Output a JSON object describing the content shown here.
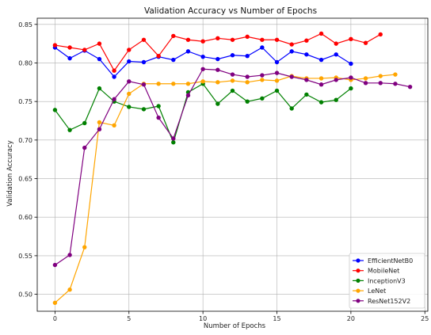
{
  "chart_data": {
    "type": "line",
    "title": "Validation Accuracy vs Number of Epochs",
    "xlabel": "Number of Epochs",
    "ylabel": "Validation Accuracy",
    "xlim": [
      -1.2,
      25.2
    ],
    "ylim": [
      0.478,
      0.858
    ],
    "xticks": [
      0,
      5,
      10,
      15,
      20,
      25
    ],
    "yticks": [
      0.5,
      0.55,
      0.6,
      0.65,
      0.7,
      0.75,
      0.8,
      0.85
    ],
    "grid": true,
    "legend_position": "bottom-right",
    "series": [
      {
        "name": "EfficientNetB0",
        "color": "#0000ff",
        "x": [
          0,
          1,
          2,
          3,
          4,
          5,
          6,
          7,
          8,
          9,
          10,
          11,
          12,
          13,
          14,
          15,
          16,
          17,
          18,
          19,
          20
        ],
        "values": [
          0.82,
          0.806,
          0.816,
          0.805,
          0.782,
          0.802,
          0.801,
          0.808,
          0.804,
          0.815,
          0.808,
          0.805,
          0.81,
          0.809,
          0.82,
          0.801,
          0.815,
          0.811,
          0.804,
          0.811,
          0.799
        ]
      },
      {
        "name": "MobileNet",
        "color": "#ff0000",
        "x": [
          0,
          1,
          2,
          3,
          4,
          5,
          6,
          7,
          8,
          9,
          10,
          11,
          12,
          13,
          14,
          15,
          16,
          17,
          18,
          19,
          20,
          21,
          22
        ],
        "values": [
          0.823,
          0.82,
          0.817,
          0.825,
          0.79,
          0.817,
          0.83,
          0.809,
          0.835,
          0.83,
          0.828,
          0.832,
          0.83,
          0.834,
          0.83,
          0.83,
          0.824,
          0.829,
          0.838,
          0.825,
          0.831,
          0.826,
          0.837
        ]
      },
      {
        "name": "InceptionV3",
        "color": "#008000",
        "x": [
          0,
          1,
          2,
          3,
          4,
          5,
          6,
          7,
          8,
          9,
          10,
          11,
          12,
          13,
          14,
          15,
          16,
          17,
          18,
          19,
          20
        ],
        "values": [
          0.739,
          0.713,
          0.722,
          0.767,
          0.75,
          0.743,
          0.74,
          0.744,
          0.697,
          0.762,
          0.773,
          0.747,
          0.764,
          0.75,
          0.754,
          0.764,
          0.741,
          0.759,
          0.749,
          0.752,
          0.767
        ]
      },
      {
        "name": "LeNet",
        "color": "#ffa500",
        "x": [
          0,
          1,
          2,
          3,
          4,
          5,
          6,
          7,
          8,
          9,
          10,
          11,
          12,
          13,
          14,
          15,
          16,
          17,
          18,
          19,
          20,
          21,
          22,
          23
        ],
        "values": [
          0.489,
          0.506,
          0.561,
          0.723,
          0.719,
          0.76,
          0.773,
          0.773,
          0.773,
          0.773,
          0.776,
          0.775,
          0.777,
          0.775,
          0.778,
          0.777,
          0.783,
          0.78,
          0.78,
          0.781,
          0.778,
          0.78,
          0.783,
          0.785
        ]
      },
      {
        "name": "ResNet152V2",
        "color": "#800080",
        "x": [
          0,
          1,
          2,
          3,
          4,
          5,
          6,
          7,
          8,
          9,
          10,
          11,
          12,
          13,
          14,
          15,
          16,
          17,
          18,
          19,
          20,
          21,
          22,
          23,
          24
        ],
        "values": [
          0.538,
          0.551,
          0.69,
          0.714,
          0.753,
          0.776,
          0.772,
          0.729,
          0.702,
          0.758,
          0.792,
          0.791,
          0.785,
          0.782,
          0.784,
          0.787,
          0.782,
          0.778,
          0.772,
          0.778,
          0.781,
          0.774,
          0.774,
          0.773,
          0.769
        ]
      }
    ]
  }
}
